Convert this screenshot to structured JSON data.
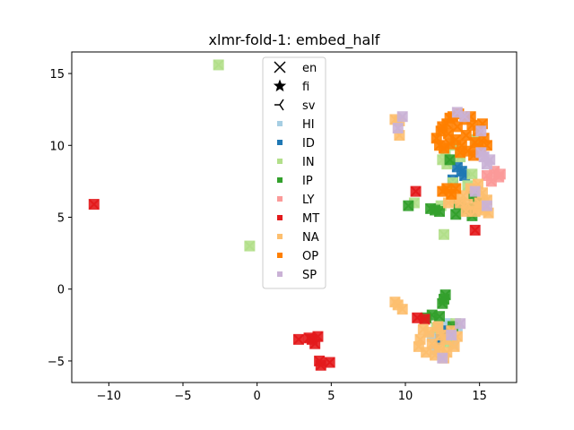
{
  "chart_data": {
    "type": "scatter",
    "title": "xlmr-fold-1: embed_half",
    "xlabel": "",
    "ylabel": "",
    "xlim": [
      -12.5,
      17.5
    ],
    "ylim": [
      -6.5,
      16.5
    ],
    "xticks": [
      -10,
      -5,
      0,
      5,
      10,
      15
    ],
    "yticks": [
      -5,
      0,
      5,
      10,
      15
    ],
    "x_tick_labels": [
      "−10",
      "−5",
      "0",
      "5",
      "10",
      "15"
    ],
    "y_tick_labels": [
      "−5",
      "0",
      "5",
      "10",
      "15"
    ],
    "grid": false,
    "legend_position": "top-center",
    "marker_legend": [
      {
        "label": "en",
        "marker": "x"
      },
      {
        "label": "fi",
        "marker": "star"
      },
      {
        "label": "sv",
        "marker": "tri"
      }
    ],
    "series": [
      {
        "name": "HI",
        "color": "#a6cee3",
        "points": [
          [
            12.6,
            -3.0
          ],
          [
            13.2,
            -3.8
          ],
          [
            12.0,
            -4.2
          ],
          [
            13.5,
            -2.6
          ],
          [
            12.8,
            -2.4
          ],
          [
            11.8,
            -3.3
          ]
        ]
      },
      {
        "name": "ID",
        "color": "#1f78b4",
        "points": [
          [
            13.8,
            8.2
          ],
          [
            13.5,
            8.5
          ],
          [
            14.0,
            7.9
          ],
          [
            13.2,
            7.6
          ],
          [
            12.4,
            -3.5
          ],
          [
            12.9,
            -2.9
          ]
        ]
      },
      {
        "name": "IN",
        "color": "#b2df8a",
        "points": [
          [
            -2.6,
            15.6
          ],
          [
            -0.5,
            3.0
          ],
          [
            12.5,
            9.0
          ],
          [
            12.7,
            9.6
          ],
          [
            12.8,
            8.7
          ],
          [
            13.3,
            10.0
          ],
          [
            14.8,
            10.4
          ],
          [
            13.7,
            9.2
          ],
          [
            14.2,
            7.2
          ],
          [
            15.3,
            6.0
          ],
          [
            12.6,
            3.8
          ],
          [
            10.6,
            6.0
          ],
          [
            12.4,
            5.8
          ],
          [
            13.2,
            7.4
          ],
          [
            14.5,
            8.0
          ],
          [
            12.1,
            -2.7
          ],
          [
            13.4,
            -2.4
          ],
          [
            12.9,
            -3.7
          ]
        ]
      },
      {
        "name": "IP",
        "color": "#33a02c",
        "points": [
          [
            12.0,
            5.5
          ],
          [
            11.7,
            5.6
          ],
          [
            12.3,
            5.4
          ],
          [
            13.4,
            5.2
          ],
          [
            14.2,
            5.6
          ],
          [
            14.5,
            5.1
          ],
          [
            13.6,
            5.9
          ],
          [
            10.2,
            5.8
          ],
          [
            12.7,
            -0.4
          ],
          [
            12.6,
            -0.7
          ],
          [
            12.5,
            -1.0
          ],
          [
            11.8,
            -1.8
          ],
          [
            11.4,
            -2.0
          ],
          [
            12.3,
            -1.9
          ],
          [
            13.2,
            -2.6
          ],
          [
            13.0,
            9.0
          ],
          [
            14.6,
            6.5
          ],
          [
            14.9,
            6.0
          ]
        ]
      },
      {
        "name": "LY",
        "color": "#fb9a99",
        "points": [
          [
            16.0,
            8.2
          ],
          [
            16.3,
            7.8
          ],
          [
            15.8,
            7.5
          ],
          [
            16.4,
            8.0
          ],
          [
            15.5,
            7.9
          ]
        ]
      },
      {
        "name": "MT",
        "color": "#e31a1c",
        "points": [
          [
            -11.0,
            5.9
          ],
          [
            10.7,
            6.8
          ],
          [
            14.7,
            4.1
          ],
          [
            2.8,
            -3.5
          ],
          [
            3.7,
            -3.5
          ],
          [
            3.9,
            -3.8
          ],
          [
            3.5,
            -3.4
          ],
          [
            4.1,
            -3.3
          ],
          [
            4.2,
            -5.0
          ],
          [
            4.3,
            -5.3
          ],
          [
            4.9,
            -5.1
          ],
          [
            10.8,
            -2.0
          ],
          [
            11.3,
            -2.1
          ]
        ]
      },
      {
        "name": "NA",
        "color": "#fdbf6f",
        "points": [
          [
            9.3,
            -0.9
          ],
          [
            9.5,
            -1.1
          ],
          [
            9.8,
            -1.4
          ],
          [
            11.2,
            -2.8
          ],
          [
            11.0,
            -3.5
          ],
          [
            10.9,
            -4.0
          ],
          [
            11.4,
            -4.4
          ],
          [
            12.0,
            -4.6
          ],
          [
            12.8,
            -4.4
          ],
          [
            13.3,
            -4.0
          ],
          [
            13.5,
            -3.3
          ],
          [
            13.1,
            -2.9
          ],
          [
            12.4,
            -3.2
          ],
          [
            11.8,
            -3.8
          ],
          [
            12.3,
            -4.1
          ],
          [
            12.7,
            -3.5
          ],
          [
            11.6,
            -3.0
          ],
          [
            12.2,
            -2.6
          ],
          [
            12.6,
            -4.8
          ],
          [
            14.9,
            5.7
          ],
          [
            15.3,
            5.5
          ],
          [
            15.6,
            5.3
          ],
          [
            14.7,
            5.4
          ],
          [
            14.2,
            5.9
          ],
          [
            13.9,
            6.5
          ],
          [
            14.4,
            7.0
          ],
          [
            14.9,
            7.3
          ],
          [
            15.2,
            6.7
          ],
          [
            15.5,
            6.2
          ],
          [
            13.7,
            6.0
          ],
          [
            13.3,
            6.3
          ],
          [
            12.9,
            6.0
          ],
          [
            14.1,
            5.4
          ],
          [
            15.0,
            6.0
          ],
          [
            9.3,
            11.8
          ],
          [
            9.6,
            11.7
          ],
          [
            9.6,
            10.7
          ]
        ]
      },
      {
        "name": "OP",
        "color": "#ff7f00",
        "points": [
          [
            12.1,
            10.5
          ],
          [
            12.4,
            11.0
          ],
          [
            12.8,
            11.5
          ],
          [
            13.2,
            12.0
          ],
          [
            13.6,
            12.2
          ],
          [
            14.0,
            11.8
          ],
          [
            14.5,
            11.4
          ],
          [
            14.9,
            11.0
          ],
          [
            15.3,
            10.5
          ],
          [
            15.5,
            10.0
          ],
          [
            15.1,
            9.6
          ],
          [
            14.6,
            9.3
          ],
          [
            14.2,
            9.6
          ],
          [
            13.8,
            10.0
          ],
          [
            13.4,
            10.4
          ],
          [
            13.0,
            10.1
          ],
          [
            12.6,
            9.8
          ],
          [
            12.3,
            10.0
          ],
          [
            12.9,
            10.8
          ],
          [
            13.5,
            11.3
          ],
          [
            14.1,
            10.7
          ],
          [
            14.7,
            10.2
          ],
          [
            15.2,
            11.5
          ],
          [
            14.4,
            12.0
          ],
          [
            13.0,
            11.9
          ],
          [
            12.5,
            11.3
          ],
          [
            13.7,
            9.5
          ],
          [
            14.9,
            9.8
          ],
          [
            12.8,
            7.0
          ],
          [
            13.1,
            6.6
          ],
          [
            12.5,
            6.8
          ],
          [
            13.4,
            7.0
          ]
        ]
      },
      {
        "name": "SP",
        "color": "#cab2d6",
        "points": [
          [
            15.3,
            9.2
          ],
          [
            15.5,
            8.7
          ],
          [
            15.1,
            9.5
          ],
          [
            15.7,
            9.0
          ],
          [
            14.0,
            12.0
          ],
          [
            13.5,
            12.3
          ],
          [
            15.1,
            11.0
          ],
          [
            14.7,
            6.8
          ],
          [
            15.5,
            5.8
          ],
          [
            9.5,
            11.2
          ],
          [
            9.8,
            12.0
          ],
          [
            13.7,
            -2.4
          ],
          [
            12.5,
            -4.8
          ],
          [
            13.1,
            -3.2
          ]
        ]
      }
    ]
  }
}
